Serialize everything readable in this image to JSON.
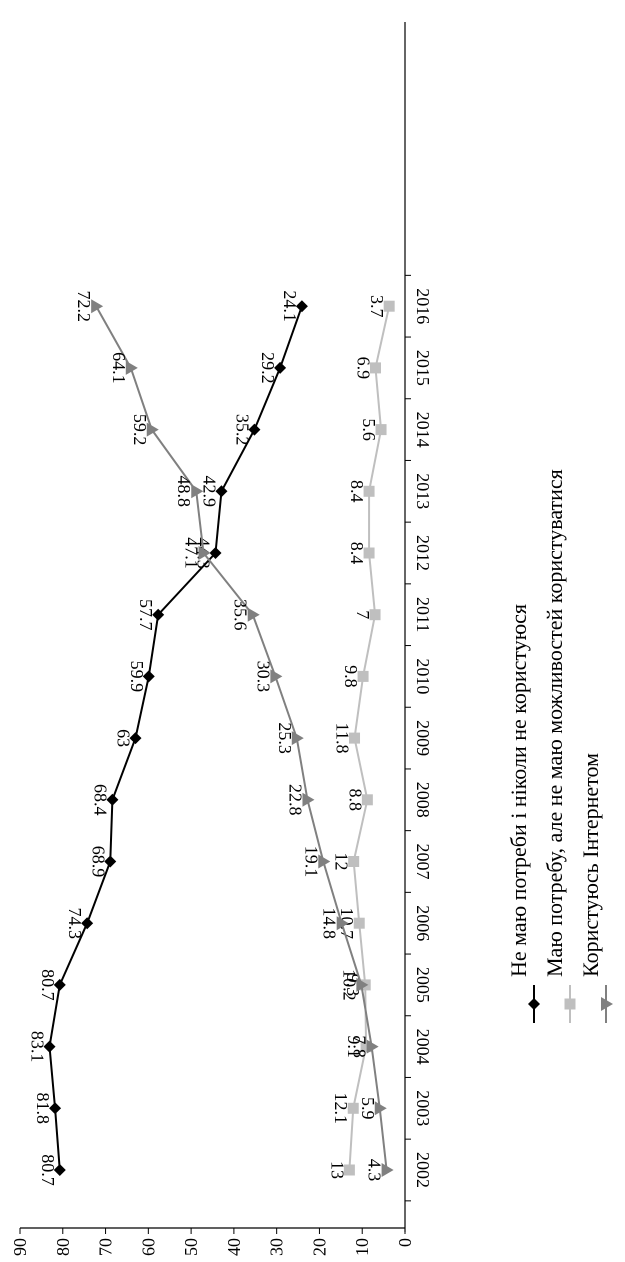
{
  "chart_data": {
    "type": "line",
    "orientation": "rotated-90-clockwise",
    "x": [
      "2002",
      "2003",
      "2004",
      "2005",
      "2006",
      "2007",
      "2008",
      "2009",
      "2010",
      "2011",
      "2012",
      "2013",
      "2014",
      "2015",
      "2016"
    ],
    "ylim": [
      0,
      90
    ],
    "yticks": [
      0,
      10,
      20,
      30,
      40,
      50,
      60,
      70,
      80,
      90
    ],
    "grid": false,
    "legend_position": "right",
    "series": [
      {
        "name": "Не маю потреби і ніколи не користуюся",
        "color": "#000000",
        "marker": "diamond",
        "values": [
          80.7,
          81.8,
          83.1,
          80.7,
          74.3,
          68.9,
          68.4,
          63,
          59.9,
          57.7,
          44.3,
          42.9,
          35.2,
          29.2,
          24.1
        ],
        "labels": [
          "80.7",
          "81.8",
          "83.1",
          "80.7",
          "74.3",
          "68.9",
          "68.4",
          "63",
          "59.9",
          "57.7",
          "44.3",
          "42.9",
          "35.2",
          "29.2",
          "24.1"
        ]
      },
      {
        "name": "Маю потребу, але не маю можливостей користуватися",
        "color": "#bfbfbf",
        "marker": "square",
        "values": [
          13,
          12.1,
          9.1,
          9.3,
          10.7,
          12,
          8.8,
          11.8,
          9.8,
          7,
          8.4,
          8.4,
          5.6,
          6.9,
          3.7
        ],
        "labels": [
          "13",
          "12.1",
          "9.1",
          "9.3",
          "10.7",
          "12",
          "8.8",
          "11.8",
          "9.8",
          "7",
          "8.4",
          "8.4",
          "5.6",
          "6.9",
          "3.7"
        ]
      },
      {
        "name": "Користуюсь Інтернетом",
        "color": "#808080",
        "marker": "triangle",
        "values": [
          4.3,
          5.9,
          7.8,
          10.2,
          14.8,
          19.1,
          22.8,
          25.3,
          30.3,
          35.6,
          47.1,
          48.8,
          59.2,
          64.1,
          72.2
        ],
        "labels": [
          "4.3",
          "5.9",
          "7.8",
          "10.2",
          "14.8",
          "19.1",
          "22.8",
          "25.3",
          "30.3",
          "35.6",
          "47.1",
          "48.8",
          "59.2",
          "64.1",
          "72.2"
        ]
      }
    ]
  }
}
